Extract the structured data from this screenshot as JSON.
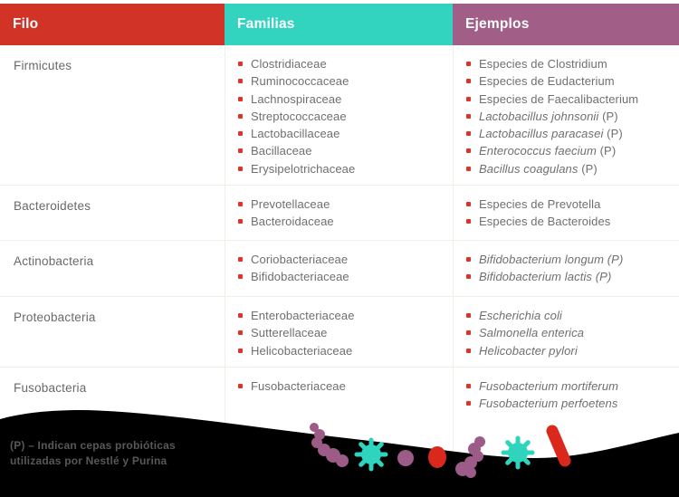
{
  "chart_data": {
    "type": "table",
    "columns": [
      {
        "label": "Filo",
        "color": "#d13327"
      },
      {
        "label": "Familias",
        "color": "#32d4bf"
      },
      {
        "label": "Ejemplos",
        "color": "#a15e87"
      }
    ],
    "rows": [
      {
        "filo": "Firmicutes",
        "familias": [
          "Clostridiaceae",
          "Ruminococcaceae",
          "Lachnospiraceae",
          "Streptococcaceae",
          "Lactobacillaceae",
          "Bacillaceae",
          "Erysipelotrichaceae"
        ],
        "ejemplos": [
          {
            "text": "Especies de Clostridium",
            "italic": false,
            "suffix": ""
          },
          {
            "text": "Especies de Eudacterium",
            "italic": false,
            "suffix": ""
          },
          {
            "text": "Especies de Faecalibacterium",
            "italic": false,
            "suffix": ""
          },
          {
            "text": "Lactobacillus johnsonii",
            "italic": true,
            "suffix": " (P)"
          },
          {
            "text": "Lactobacillus paracasei",
            "italic": true,
            "suffix": " (P)"
          },
          {
            "text": "Enterococcus faecium",
            "italic": true,
            "suffix": " (P)"
          },
          {
            "text": "Bacillus coagulans",
            "italic": true,
            "suffix": " (P)"
          }
        ]
      },
      {
        "filo": "Bacteroidetes",
        "familias": [
          "Prevotellaceae",
          "Bacteroidaceae"
        ],
        "ejemplos": [
          {
            "text": "Especies de Prevotella",
            "italic": false,
            "suffix": ""
          },
          {
            "text": "Especies de Bacteroides",
            "italic": false,
            "suffix": ""
          }
        ]
      },
      {
        "filo": "Actinobacteria",
        "familias": [
          "Coriobacteriaceae",
          "Bifidobacteriaceae"
        ],
        "ejemplos": [
          {
            "text": "Bifidobacterium longum (P)",
            "italic": true,
            "suffix": ""
          },
          {
            "text": "Bifidobacterium lactis (P)",
            "italic": true,
            "suffix": ""
          }
        ]
      },
      {
        "filo": "Proteobacteria",
        "familias": [
          "Enterobacteriaceae",
          "Sutterellaceae",
          "Helicobacteriaceae"
        ],
        "ejemplos": [
          {
            "text": "Escherichia coli",
            "italic": true,
            "suffix": ""
          },
          {
            "text": "Salmonella enterica",
            "italic": true,
            "suffix": ""
          },
          {
            "text": "Helicobacter pylori",
            "italic": true,
            "suffix": ""
          }
        ]
      },
      {
        "filo": "Fusobacteria",
        "familias": [
          "Fusobacteriaceae"
        ],
        "ejemplos": [
          {
            "text": "Fusobacterium mortiferum",
            "italic": true,
            "suffix": ""
          },
          {
            "text": "Fusobacterium perfoetens",
            "italic": true,
            "suffix": ""
          }
        ]
      }
    ]
  },
  "footnote": {
    "line1": "(P) – Indican cepas probióticas",
    "line2": "utilizadas por Nestlé y Purina"
  },
  "colors": {
    "header_red": "#d13327",
    "header_teal": "#32d4bf",
    "header_purple": "#a15e87",
    "bullet_red": "#e03227",
    "body_text": "#6e6f71",
    "separator": "#f2eee5",
    "footer_bg": "#000000",
    "footnote_text": "#58585a",
    "microbe_purple": "#9d5b87",
    "microbe_teal": "#2ed4be",
    "microbe_red": "#da291c"
  },
  "decorations": [
    "cocci-chain",
    "spiky-microbe",
    "small-coccus",
    "coccus",
    "cocci-chain",
    "spiky-microbe",
    "bacillus-rod"
  ]
}
